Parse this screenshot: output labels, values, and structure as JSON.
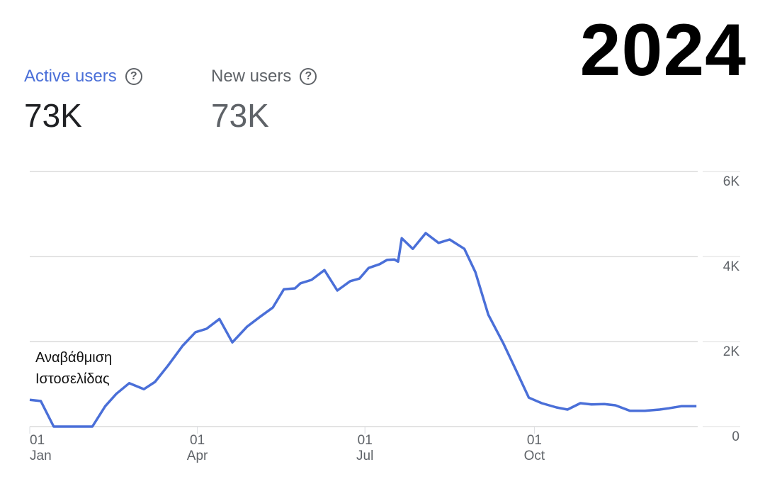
{
  "year_label": "2024",
  "metrics": [
    {
      "label": "Active users",
      "value": "73K",
      "color": "#4a6fd8",
      "icon": "help-circle-icon"
    },
    {
      "label": "New users",
      "value": "73K",
      "color": "#5f6368",
      "icon": "help-circle-icon"
    }
  ],
  "annotation": {
    "line1": "Αναβάθμιση",
    "line2": "Ιστοσελίδας"
  },
  "chart_data": {
    "type": "line",
    "title": "",
    "xlabel": "",
    "ylabel": "",
    "xlim": [
      "2024-01-01",
      "2024-12-31"
    ],
    "ylim": [
      0,
      6000
    ],
    "y_ticks": [
      {
        "value": 0,
        "label": "0"
      },
      {
        "value": 2000,
        "label": "2K"
      },
      {
        "value": 4000,
        "label": "4K"
      },
      {
        "value": 6000,
        "label": "6K"
      }
    ],
    "x_ticks": [
      {
        "date": "2024-01-01",
        "day": "01",
        "month": "Jan"
      },
      {
        "date": "2024-04-01",
        "day": "01",
        "month": "Apr"
      },
      {
        "date": "2024-07-01",
        "day": "01",
        "month": "Jul"
      },
      {
        "date": "2024-10-01",
        "day": "01",
        "month": "Oct"
      }
    ],
    "grid": true,
    "y_axis_position": "right",
    "series": [
      {
        "color": "#4a6fd8",
        "x": [
          "2024-01-01",
          "2024-01-07",
          "2024-01-14",
          "2024-01-21",
          "2024-01-28",
          "2024-02-04",
          "2024-02-11",
          "2024-02-17",
          "2024-02-24",
          "2024-03-03",
          "2024-03-09",
          "2024-03-16",
          "2024-03-24",
          "2024-03-31",
          "2024-04-06",
          "2024-04-13",
          "2024-04-20",
          "2024-04-28",
          "2024-05-05",
          "2024-05-12",
          "2024-05-18",
          "2024-05-24",
          "2024-05-27",
          "2024-06-02",
          "2024-06-09",
          "2024-06-16",
          "2024-06-23",
          "2024-06-28",
          "2024-07-03",
          "2024-07-09",
          "2024-07-13",
          "2024-07-17",
          "2024-07-19",
          "2024-07-21",
          "2024-07-27",
          "2024-08-03",
          "2024-08-10",
          "2024-08-16",
          "2024-08-24",
          "2024-08-30",
          "2024-09-06",
          "2024-09-14",
          "2024-09-21",
          "2024-09-28",
          "2024-10-05",
          "2024-10-13",
          "2024-10-19",
          "2024-10-26",
          "2024-11-01",
          "2024-11-08",
          "2024-11-14",
          "2024-11-22",
          "2024-11-30",
          "2024-12-08",
          "2024-12-13",
          "2024-12-20",
          "2024-12-28"
        ],
        "y": [
          630,
          600,
          0,
          0,
          0,
          0,
          480,
          770,
          1020,
          880,
          1050,
          1430,
          1900,
          2220,
          2300,
          2530,
          1980,
          2350,
          2580,
          2800,
          3230,
          3250,
          3370,
          3450,
          3680,
          3200,
          3420,
          3480,
          3730,
          3820,
          3920,
          3930,
          3880,
          4430,
          4180,
          4550,
          4320,
          4400,
          4180,
          3630,
          2630,
          1970,
          1330,
          680,
          550,
          450,
          400,
          550,
          520,
          530,
          500,
          370,
          370,
          400,
          430,
          480,
          480
        ]
      }
    ]
  }
}
